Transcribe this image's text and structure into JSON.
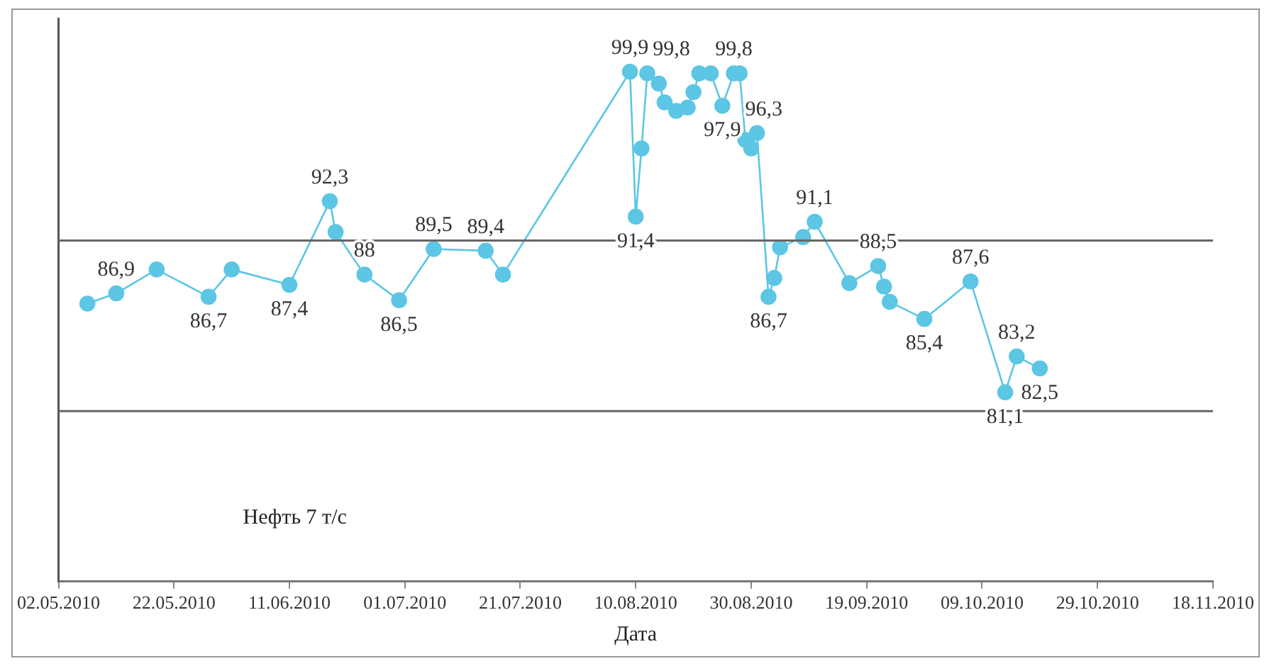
{
  "chart_data": {
    "type": "line",
    "xlabel": "Дата",
    "annotations": [
      "Нефть 7 т/с"
    ],
    "x": [
      "2010-05-07",
      "2010-05-12",
      "2010-05-19",
      "2010-05-28",
      "2010-06-01",
      "2010-06-11",
      "2010-06-18",
      "2010-06-19",
      "2010-06-24",
      "2010-06-30",
      "2010-07-06",
      "2010-07-15",
      "2010-07-18",
      "2010-08-09",
      "2010-08-10",
      "2010-08-11",
      "2010-08-12",
      "2010-08-14",
      "2010-08-15",
      "2010-08-17",
      "2010-08-19",
      "2010-08-20",
      "2010-08-21",
      "2010-08-23",
      "2010-08-25",
      "2010-08-27",
      "2010-08-28",
      "2010-08-29",
      "2010-08-30",
      "2010-08-31",
      "2010-09-02",
      "2010-09-03",
      "2010-09-04",
      "2010-09-08",
      "2010-09-10",
      "2010-09-16",
      "2010-09-21",
      "2010-09-22",
      "2010-09-23",
      "2010-09-29",
      "2010-10-07",
      "2010-10-13",
      "2010-10-15",
      "2010-10-19"
    ],
    "series": [
      {
        "color": "#5cc6e4",
        "values": [
          86.3,
          86.9,
          88.3,
          86.7,
          88.3,
          87.4,
          92.3,
          90.5,
          88,
          86.5,
          89.5,
          89.4,
          88.0,
          99.9,
          91.4,
          95.4,
          99.8,
          99.2,
          98.1,
          97.6,
          97.8,
          98.7,
          99.8,
          99.8,
          97.9,
          99.8,
          99.8,
          95.9,
          95.4,
          96.3,
          86.7,
          87.8,
          89.6,
          90.2,
          91.1,
          87.5,
          88.5,
          87.3,
          86.4,
          85.4,
          87.6,
          81.1,
          83.2,
          82.5
        ],
        "value_labels": [
          null,
          "86,9",
          null,
          "86,7",
          null,
          "87,4",
          "92,3",
          null,
          "88",
          "86,5",
          "89,5",
          "89,4",
          null,
          "99,9",
          "91,4",
          null,
          "99,8",
          null,
          null,
          null,
          null,
          null,
          null,
          null,
          "97,9",
          "99,8",
          null,
          null,
          null,
          "96,3",
          "86,7",
          null,
          null,
          null,
          "91,1",
          null,
          "88,5",
          null,
          null,
          "85,4",
          "87,6",
          "81,1",
          "83,2",
          "82,5"
        ]
      }
    ],
    "xlim": [
      "2010-05-02",
      "2010-11-18"
    ],
    "xticks": [
      {
        "value": "2010-05-02",
        "label": "02.05.2010"
      },
      {
        "value": "2010-05-22",
        "label": "22.05.2010"
      },
      {
        "value": "2010-06-11",
        "label": "11.06.2010"
      },
      {
        "value": "2010-07-01",
        "label": "01.07.2010"
      },
      {
        "value": "2010-07-21",
        "label": "21.07.2010"
      },
      {
        "value": "2010-08-10",
        "label": "10.08.2010"
      },
      {
        "value": "2010-08-30",
        "label": "30.08.2010"
      },
      {
        "value": "2010-09-19",
        "label": "19.09.2010"
      },
      {
        "value": "2010-10-09",
        "label": "09.10.2010"
      },
      {
        "value": "2010-10-29",
        "label": "29.10.2010"
      },
      {
        "value": "2010-11-18",
        "label": "18.11.2010"
      }
    ],
    "ylim": [
      70,
      103
    ],
    "ref_lines": [
      {
        "axis": "y",
        "value": 80,
        "color": "#666666"
      },
      {
        "axis": "y",
        "value": 90,
        "color": "#666666"
      }
    ],
    "tick_labels": "x",
    "legend": false,
    "marker": "circle",
    "line_style": "solid"
  }
}
